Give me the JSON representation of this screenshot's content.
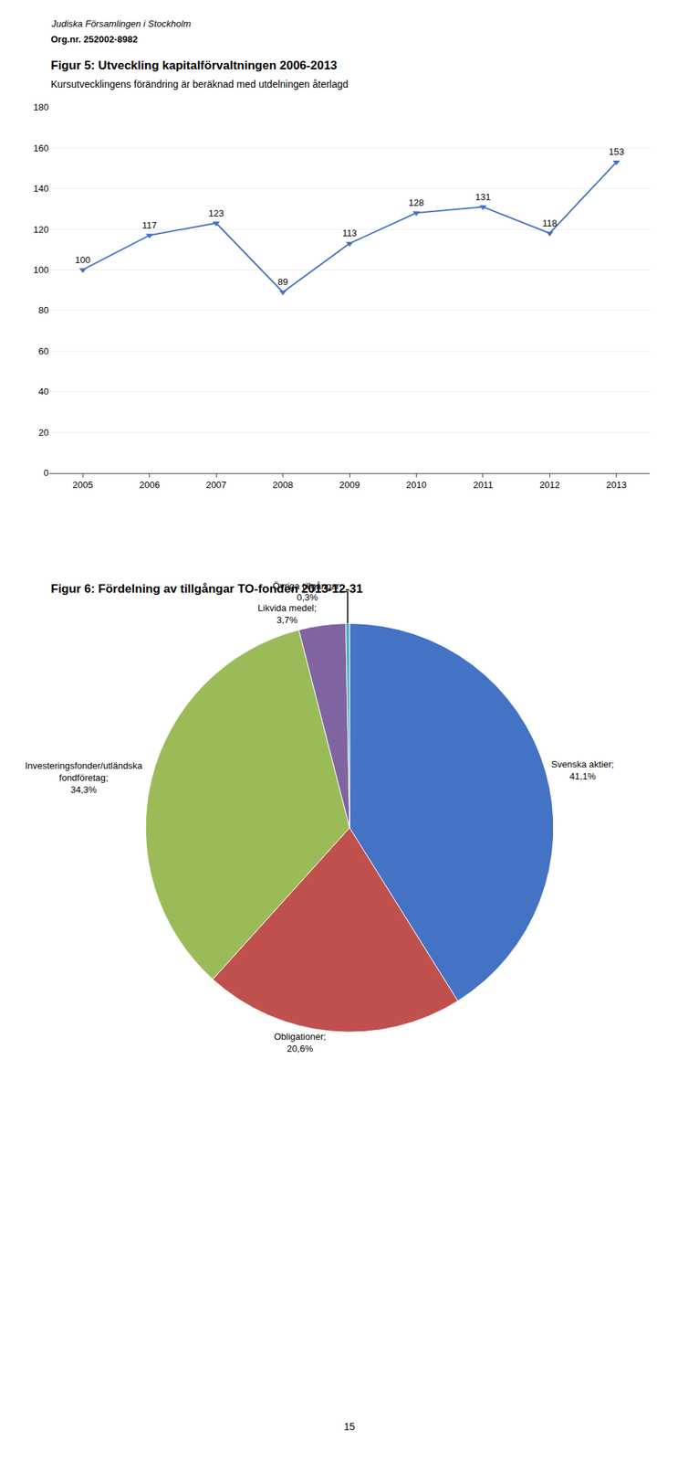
{
  "chart_data": [
    {
      "type": "line",
      "title": "Figur 5: Utveckling kapitalförvaltningen 2006-2013",
      "subtitle": "Kursutvecklingens förändring är beräknad med utdelningen återlagd",
      "annotations": [
        "Judiska Församlingen i Stockholm",
        "Org.nr. 252002-8982"
      ],
      "x": [
        2005,
        2006,
        2007,
        2008,
        2009,
        2010,
        2011,
        2012,
        2013
      ],
      "values": [
        100,
        117,
        123,
        89,
        113,
        128,
        131,
        118,
        153
      ],
      "color": "#4472C4",
      "marker": "triangle-down",
      "xlim": [
        2004.5,
        2013.5
      ],
      "xticks": [
        2005,
        2006,
        2007,
        2008,
        2009,
        2010,
        2011,
        2012,
        2013
      ],
      "ylim": [
        0,
        180
      ],
      "yticks": [
        0,
        20,
        40,
        60,
        80,
        100,
        120,
        140,
        160,
        180
      ],
      "grid": true,
      "data_labels": true
    },
    {
      "type": "pie",
      "title": "Figur 6: Fördelning av tillgångar TO-fonden 2013-12-31",
      "categories": [
        "Svenska aktier;",
        "Obligationer;",
        "Investeringsfonder/utländska fondföretag;",
        "Likvida medel;",
        "Övriga tillgångar;"
      ],
      "values": [
        41.1,
        20.6,
        34.3,
        3.7,
        0.3
      ],
      "value_labels": [
        "41,1%",
        "20,6%",
        "34,3%",
        "3,7%",
        "0,3%"
      ],
      "colors": [
        "#4472C4",
        "#C0504D",
        "#9BBB59",
        "#8064A2",
        "#4BACC6"
      ],
      "annotations": [
        "15"
      ]
    }
  ]
}
